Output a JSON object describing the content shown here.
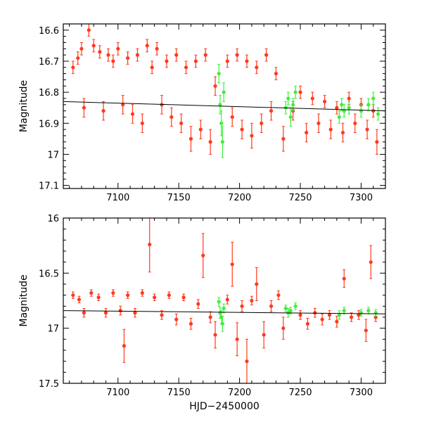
{
  "chart_data": [
    {
      "type": "scatter",
      "panel": "top",
      "xlabel": "",
      "ylabel": "Magnitude",
      "xlim": [
        7055,
        7320
      ],
      "ylim": [
        16.58,
        17.11
      ],
      "y_inverted": true,
      "x_ticks": [
        7100,
        7150,
        7200,
        7250,
        7300
      ],
      "y_ticks": [
        16.6,
        16.7,
        16.8,
        16.9,
        17,
        17.1
      ],
      "y_tick_labels": [
        "16.6",
        "16.7",
        "16.8",
        "16.9",
        "17",
        "17.1"
      ],
      "series": [
        {
          "color": "#ff3a1f",
          "points": [
            [
              7063,
              16.72
            ],
            [
              7067,
              16.69
            ],
            [
              7070,
              16.66
            ],
            [
              7072,
              16.85
            ],
            [
              7076,
              16.6
            ],
            [
              7080,
              16.65
            ],
            [
              7085,
              16.67
            ],
            [
              7088,
              16.86
            ],
            [
              7092,
              16.68
            ],
            [
              7096,
              16.7
            ],
            [
              7100,
              16.66
            ],
            [
              7104,
              16.84
            ],
            [
              7108,
              16.69
            ],
            [
              7112,
              16.87
            ],
            [
              7116,
              16.68
            ],
            [
              7120,
              16.9
            ],
            [
              7124,
              16.65
            ],
            [
              7128,
              16.72
            ],
            [
              7132,
              16.66
            ],
            [
              7136,
              16.84
            ],
            [
              7140,
              16.7
            ],
            [
              7144,
              16.88
            ],
            [
              7148,
              16.68
            ],
            [
              7152,
              16.9
            ],
            [
              7156,
              16.72
            ],
            [
              7160,
              16.95
            ],
            [
              7164,
              16.7
            ],
            [
              7168,
              16.92
            ],
            [
              7172,
              16.68
            ],
            [
              7176,
              16.96
            ],
            [
              7180,
              16.78
            ],
            [
              7190,
              16.7
            ],
            [
              7194,
              16.88
            ],
            [
              7198,
              16.68
            ],
            [
              7202,
              16.92
            ],
            [
              7206,
              16.7
            ],
            [
              7210,
              16.94
            ],
            [
              7214,
              16.72
            ],
            [
              7218,
              16.9
            ],
            [
              7222,
              16.68
            ],
            [
              7226,
              16.86
            ],
            [
              7230,
              16.74
            ],
            [
              7236,
              16.95
            ],
            [
              7244,
              16.86
            ],
            [
              7250,
              16.8
            ],
            [
              7255,
              16.93
            ],
            [
              7260,
              16.82
            ],
            [
              7265,
              16.9
            ],
            [
              7270,
              16.83
            ],
            [
              7275,
              16.92
            ],
            [
              7280,
              16.85
            ],
            [
              7285,
              16.93
            ],
            [
              7290,
              16.82
            ],
            [
              7295,
              16.9
            ],
            [
              7300,
              16.84
            ],
            [
              7305,
              16.92
            ],
            [
              7310,
              16.86
            ],
            [
              7313,
              16.96
            ]
          ],
          "errors": [
            0.02,
            0.02,
            0.02,
            0.03,
            0.02,
            0.02,
            0.02,
            0.03,
            0.02,
            0.02,
            0.02,
            0.03,
            0.02,
            0.03,
            0.02,
            0.03,
            0.02,
            0.02,
            0.02,
            0.03,
            0.02,
            0.03,
            0.02,
            0.03,
            0.02,
            0.04,
            0.02,
            0.03,
            0.02,
            0.04,
            0.03,
            0.02,
            0.03,
            0.02,
            0.03,
            0.02,
            0.04,
            0.02,
            0.03,
            0.02,
            0.03,
            0.02,
            0.04,
            0.03,
            0.02,
            0.03,
            0.02,
            0.03,
            0.02,
            0.03,
            0.02,
            0.03,
            0.02,
            0.03,
            0.02,
            0.03,
            0.02,
            0.04
          ]
        },
        {
          "color": "#3ef03a",
          "points": [
            [
              7183,
              16.74
            ],
            [
              7184,
              16.84
            ],
            [
              7185,
              16.9
            ],
            [
              7186,
              16.96
            ],
            [
              7187,
              16.8
            ],
            [
              7238,
              16.85
            ],
            [
              7240,
              16.82
            ],
            [
              7242,
              16.88
            ],
            [
              7244,
              16.84
            ],
            [
              7246,
              16.8
            ],
            [
              7282,
              16.88
            ],
            [
              7284,
              16.84
            ],
            [
              7286,
              16.86
            ],
            [
              7290,
              16.85
            ],
            [
              7300,
              16.86
            ],
            [
              7306,
              16.84
            ],
            [
              7310,
              16.82
            ],
            [
              7314,
              16.87
            ]
          ],
          "errors": [
            0.03,
            0.03,
            0.04,
            0.05,
            0.03,
            0.02,
            0.02,
            0.03,
            0.02,
            0.02,
            0.02,
            0.02,
            0.02,
            0.02,
            0.02,
            0.02,
            0.02,
            0.02
          ]
        }
      ],
      "trend_line": {
        "color": "#000000",
        "points": [
          [
            7055,
            16.83
          ],
          [
            7320,
            16.86
          ]
        ]
      }
    },
    {
      "type": "scatter",
      "panel": "bottom",
      "xlabel": "HJD−2450000",
      "ylabel": "Magnitude",
      "xlim": [
        7055,
        7320
      ],
      "ylim": [
        16.0,
        17.5
      ],
      "y_inverted": true,
      "x_ticks": [
        7100,
        7150,
        7200,
        7250,
        7300
      ],
      "y_ticks": [
        16,
        16.5,
        17,
        17.5
      ],
      "y_tick_labels": [
        "16",
        "16.5",
        "17",
        "17.5"
      ],
      "series": [
        {
          "color": "#ff3a1f",
          "points": [
            [
              7063,
              16.7
            ],
            [
              7068,
              16.74
            ],
            [
              7072,
              16.86
            ],
            [
              7078,
              16.68
            ],
            [
              7084,
              16.72
            ],
            [
              7090,
              16.86
            ],
            [
              7096,
              16.68
            ],
            [
              7102,
              16.84
            ],
            [
              7105,
              17.16
            ],
            [
              7108,
              16.7
            ],
            [
              7114,
              16.86
            ],
            [
              7120,
              16.68
            ],
            [
              7126,
              16.24
            ],
            [
              7130,
              16.72
            ],
            [
              7136,
              16.88
            ],
            [
              7142,
              16.7
            ],
            [
              7148,
              16.92
            ],
            [
              7154,
              16.72
            ],
            [
              7160,
              16.96
            ],
            [
              7166,
              16.78
            ],
            [
              7170,
              16.34
            ],
            [
              7176,
              16.9
            ],
            [
              7180,
              17.06
            ],
            [
              7190,
              16.74
            ],
            [
              7194,
              16.42
            ],
            [
              7198,
              17.1
            ],
            [
              7202,
              16.8
            ],
            [
              7206,
              17.3
            ],
            [
              7210,
              16.75
            ],
            [
              7214,
              16.6
            ],
            [
              7220,
              17.06
            ],
            [
              7226,
              16.8
            ],
            [
              7232,
              16.7
            ],
            [
              7236,
              17.0
            ],
            [
              7250,
              16.88
            ],
            [
              7256,
              16.96
            ],
            [
              7262,
              16.86
            ],
            [
              7268,
              16.92
            ],
            [
              7274,
              16.88
            ],
            [
              7280,
              16.94
            ],
            [
              7286,
              16.55
            ],
            [
              7292,
              16.9
            ],
            [
              7298,
              16.88
            ],
            [
              7304,
              17.02
            ],
            [
              7308,
              16.4
            ],
            [
              7312,
              16.9
            ]
          ],
          "errors": [
            0.03,
            0.03,
            0.04,
            0.03,
            0.03,
            0.04,
            0.03,
            0.04,
            0.15,
            0.03,
            0.04,
            0.03,
            0.25,
            0.03,
            0.04,
            0.03,
            0.05,
            0.03,
            0.05,
            0.04,
            0.2,
            0.05,
            0.12,
            0.04,
            0.2,
            0.15,
            0.05,
            0.2,
            0.04,
            0.15,
            0.12,
            0.05,
            0.04,
            0.1,
            0.04,
            0.05,
            0.04,
            0.05,
            0.04,
            0.05,
            0.08,
            0.04,
            0.04,
            0.1,
            0.15,
            0.04
          ]
        },
        {
          "color": "#3ef03a",
          "points": [
            [
              7183,
              16.76
            ],
            [
              7184,
              16.86
            ],
            [
              7185,
              16.9
            ],
            [
              7186,
              16.96
            ],
            [
              7187,
              16.82
            ],
            [
              7238,
              16.82
            ],
            [
              7240,
              16.86
            ],
            [
              7242,
              16.84
            ],
            [
              7246,
              16.8
            ],
            [
              7282,
              16.88
            ],
            [
              7286,
              16.84
            ],
            [
              7300,
              16.86
            ],
            [
              7306,
              16.84
            ],
            [
              7312,
              16.86
            ]
          ],
          "errors": [
            0.04,
            0.05,
            0.06,
            0.07,
            0.04,
            0.03,
            0.04,
            0.03,
            0.03,
            0.04,
            0.03,
            0.03,
            0.03,
            0.03
          ]
        }
      ],
      "trend_line": {
        "color": "#000000",
        "points": [
          [
            7055,
            16.84
          ],
          [
            7320,
            16.87
          ]
        ]
      }
    }
  ]
}
